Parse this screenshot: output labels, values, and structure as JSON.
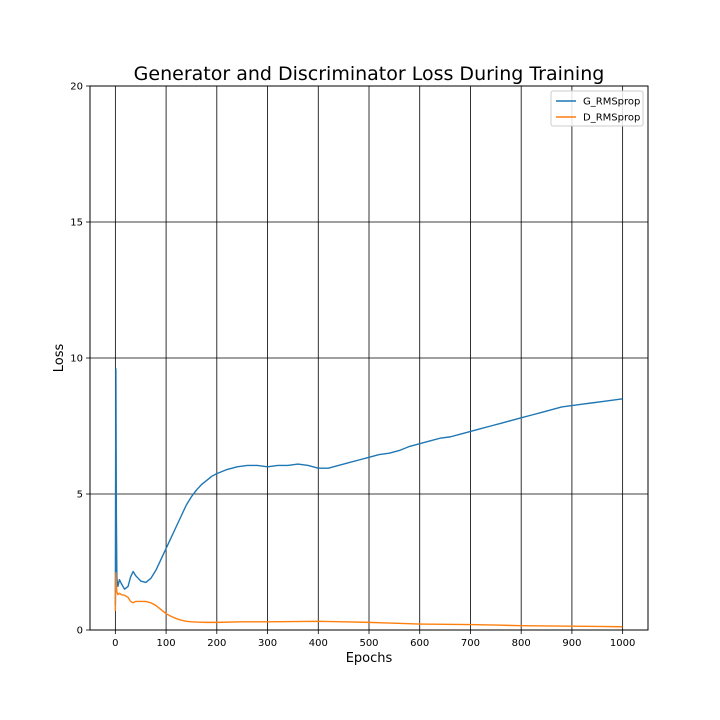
{
  "chart_data": {
    "type": "line",
    "title": "Generator and Discriminator Loss During Training",
    "xlabel": "Epochs",
    "ylabel": "Loss",
    "xlim": [
      -50,
      1050
    ],
    "ylim": [
      0,
      20
    ],
    "xticks": [
      0,
      100,
      200,
      300,
      400,
      500,
      600,
      700,
      800,
      900,
      1000
    ],
    "yticks": [
      0,
      5,
      10,
      15,
      20
    ],
    "grid": true,
    "legend": "top-right",
    "series": [
      {
        "name": "G_RMSprop",
        "color": "#1f77b4",
        "x": [
          0,
          1,
          2,
          3,
          5,
          8,
          12,
          18,
          25,
          30,
          35,
          40,
          45,
          50,
          60,
          70,
          80,
          90,
          100,
          110,
          120,
          130,
          140,
          150,
          160,
          170,
          180,
          190,
          200,
          220,
          240,
          260,
          280,
          300,
          320,
          340,
          360,
          380,
          400,
          420,
          440,
          460,
          480,
          500,
          520,
          540,
          560,
          580,
          600,
          620,
          640,
          660,
          680,
          700,
          720,
          740,
          760,
          780,
          800,
          820,
          840,
          860,
          880,
          900,
          920,
          940,
          960,
          980,
          1000
        ],
        "y": [
          0.9,
          9.6,
          4.2,
          1.9,
          1.6,
          1.85,
          1.7,
          1.5,
          1.6,
          1.95,
          2.15,
          2.0,
          1.9,
          1.8,
          1.75,
          1.9,
          2.2,
          2.6,
          3.0,
          3.4,
          3.8,
          4.2,
          4.6,
          4.9,
          5.15,
          5.35,
          5.5,
          5.65,
          5.75,
          5.9,
          6.0,
          6.05,
          6.05,
          6.0,
          6.05,
          6.05,
          6.1,
          6.05,
          5.95,
          5.95,
          6.05,
          6.15,
          6.25,
          6.35,
          6.45,
          6.5,
          6.6,
          6.75,
          6.85,
          6.95,
          7.05,
          7.1,
          7.2,
          7.3,
          7.4,
          7.5,
          7.6,
          7.7,
          7.8,
          7.9,
          8.0,
          8.1,
          8.2,
          8.25,
          8.3,
          8.35,
          8.4,
          8.45,
          8.5
        ]
      },
      {
        "name": "D_RMSprop",
        "color": "#ff7f0e",
        "x": [
          0,
          1,
          2,
          3,
          5,
          8,
          12,
          18,
          25,
          30,
          35,
          40,
          50,
          60,
          70,
          80,
          90,
          100,
          110,
          120,
          130,
          140,
          150,
          160,
          180,
          200,
          250,
          300,
          350,
          400,
          450,
          500,
          550,
          600,
          650,
          700,
          750,
          800,
          850,
          900,
          950,
          1000
        ],
        "y": [
          0.7,
          2.1,
          1.6,
          1.4,
          1.3,
          1.35,
          1.3,
          1.28,
          1.2,
          1.05,
          1.0,
          1.05,
          1.05,
          1.05,
          1.0,
          0.9,
          0.75,
          0.6,
          0.5,
          0.42,
          0.36,
          0.32,
          0.3,
          0.29,
          0.28,
          0.28,
          0.3,
          0.3,
          0.31,
          0.32,
          0.3,
          0.28,
          0.25,
          0.22,
          0.21,
          0.2,
          0.18,
          0.16,
          0.15,
          0.14,
          0.13,
          0.12
        ]
      }
    ]
  }
}
